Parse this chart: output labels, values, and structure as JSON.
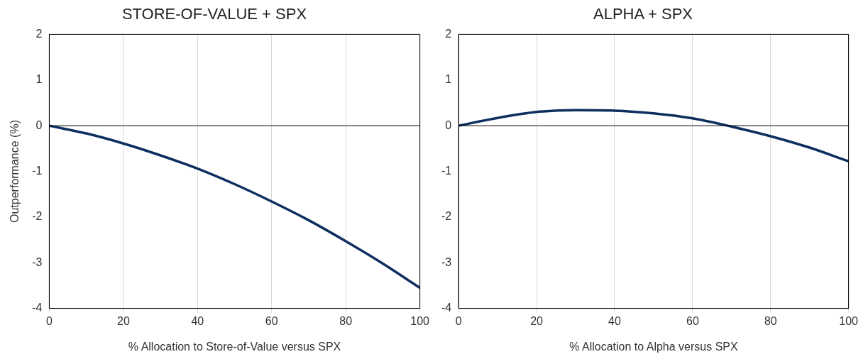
{
  "chart_data": [
    {
      "type": "line",
      "title": "STORE-OF-VALUE + SPX",
      "xlabel": "% Allocation to Store-of-Value versus SPX",
      "ylabel": "Outperformance (%)",
      "x": [
        0,
        10,
        20,
        30,
        40,
        50,
        60,
        70,
        80,
        90,
        100
      ],
      "series": [
        {
          "color": "#0d2f5f",
          "values": [
            0,
            -0.17,
            -0.39,
            -0.65,
            -0.94,
            -1.28,
            -1.66,
            -2.07,
            -2.53,
            -3.02,
            -3.55
          ]
        }
      ],
      "xlim": [
        0,
        100
      ],
      "xticks": [
        0,
        20,
        40,
        60,
        80,
        100
      ],
      "ylim": [
        -4,
        2
      ],
      "yticks": [
        -4,
        -3,
        -2,
        -1,
        0,
        1,
        2
      ],
      "grid": "x",
      "marker": "none",
      "line_style": "solid",
      "ref_lines": [
        {
          "axis": "y",
          "value": 0,
          "color": "#000000"
        }
      ]
    },
    {
      "type": "line",
      "title": "ALPHA + SPX",
      "xlabel": "% Allocation to Alpha versus SPX",
      "x": [
        0,
        10,
        20,
        30,
        40,
        50,
        60,
        70,
        80,
        90,
        100
      ],
      "series": [
        {
          "color": "#0d2f5f",
          "values": [
            0,
            0.17,
            0.3,
            0.34,
            0.33,
            0.27,
            0.16,
            -0.02,
            -0.23,
            -0.48,
            -0.78
          ]
        }
      ],
      "xlim": [
        0,
        100
      ],
      "xticks": [
        0,
        20,
        40,
        60,
        80,
        100
      ],
      "ylim": [
        -4,
        2
      ],
      "yticks": [
        -4,
        -3,
        -2,
        -1,
        0,
        1,
        2
      ],
      "grid": "x",
      "marker": "none",
      "line_style": "solid",
      "ref_lines": [
        {
          "axis": "y",
          "value": 0,
          "color": "#000000"
        }
      ]
    }
  ]
}
